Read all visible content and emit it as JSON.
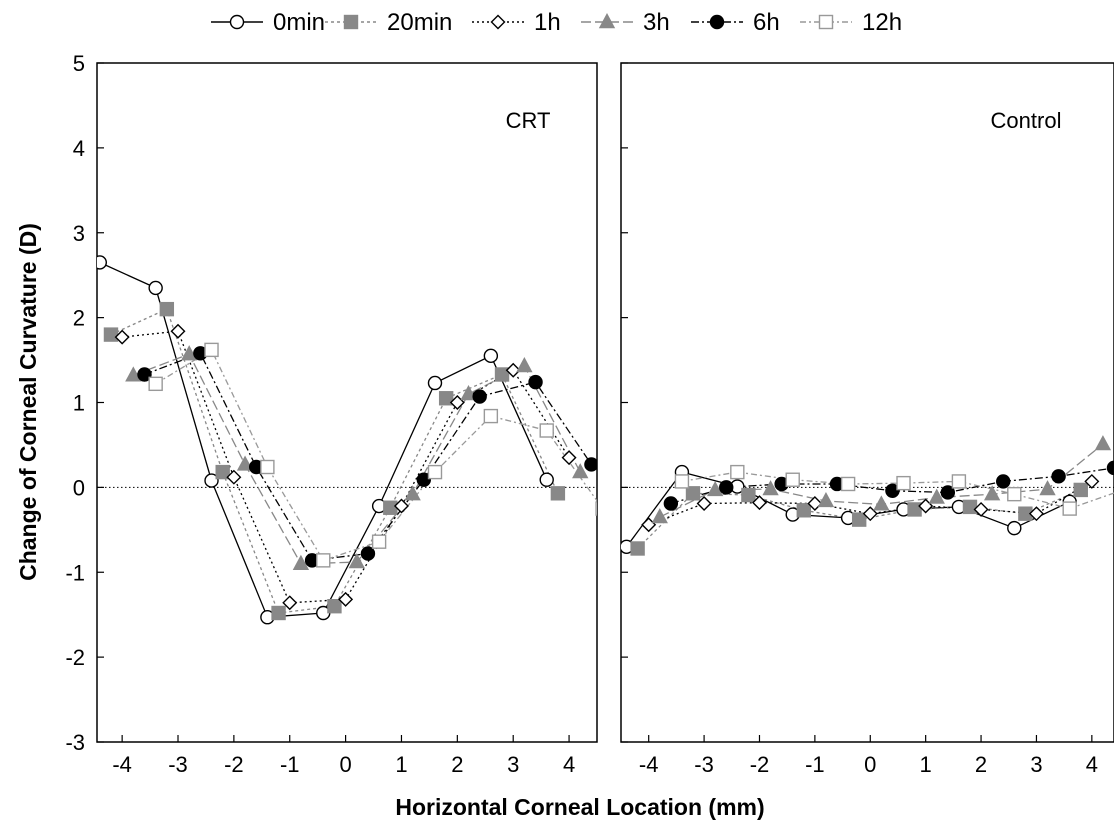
{
  "chart_data": {
    "type": "line",
    "xlabel": "Horizontal Corneal Location (mm)",
    "ylabel": "Change of Corneal Curvature (D)",
    "ylim": [
      -3,
      5
    ],
    "y_ticks": [
      "5",
      "4",
      "3",
      "2",
      "1",
      "0",
      "-1",
      "-2",
      "-3"
    ],
    "x_ticks": [
      "-4",
      "-3",
      "-2",
      "-1",
      "0",
      "1",
      "2",
      "3",
      "4"
    ],
    "legend_position": "top",
    "reference_line": 0,
    "series_styles": [
      {
        "name": "0min",
        "color": "#000000",
        "fill": "#ffffff",
        "marker": "circle",
        "dash": ""
      },
      {
        "name": "20min",
        "color": "#888888",
        "fill": "#888888",
        "marker": "square",
        "dash": "3,3"
      },
      {
        "name": "1h",
        "color": "#000000",
        "fill": "#ffffff",
        "marker": "diamond",
        "dash": "2,3"
      },
      {
        "name": "3h",
        "color": "#888888",
        "fill": "#888888",
        "marker": "triangle",
        "dash": "10,4"
      },
      {
        "name": "6h",
        "color": "#000000",
        "fill": "#000000",
        "marker": "circle",
        "dash": "8,3,2,3"
      },
      {
        "name": "12h",
        "color": "#999999",
        "fill": "#ffffff",
        "marker": "square",
        "dash": "6,3,2,3"
      }
    ],
    "panels": [
      {
        "label": "CRT",
        "xlim": [
          -4.45,
          4.5
        ],
        "series": [
          {
            "name": "0min",
            "x": [
              -4.4,
              -3.4,
              -2.4,
              -1.4,
              -0.4,
              0.6,
              1.6,
              2.6,
              3.6
            ],
            "y": [
              2.65,
              2.35,
              0.08,
              -1.53,
              -1.48,
              -0.22,
              1.23,
              1.55,
              0.09
            ]
          },
          {
            "name": "20min",
            "x": [
              -4.2,
              -3.2,
              -2.2,
              -1.2,
              -0.2,
              0.8,
              1.8,
              2.8,
              3.8
            ],
            "y": [
              1.8,
              2.1,
              0.18,
              -1.48,
              -1.4,
              -0.24,
              1.05,
              1.33,
              -0.07
            ]
          },
          {
            "name": "1h",
            "x": [
              -4.0,
              -3.0,
              -2.0,
              -1.0,
              0.0,
              1.0,
              2.0,
              3.0,
              4.0
            ],
            "y": [
              1.77,
              1.84,
              0.12,
              -1.36,
              -1.32,
              -0.22,
              1.0,
              1.38,
              0.35
            ]
          },
          {
            "name": "3h",
            "x": [
              -3.8,
              -2.8,
              -1.8,
              -0.8,
              0.2,
              1.2,
              2.2,
              3.2,
              4.2
            ],
            "y": [
              1.32,
              1.57,
              0.27,
              -0.9,
              -0.88,
              -0.08,
              1.1,
              1.43,
              0.18
            ]
          },
          {
            "name": "6h",
            "x": [
              -3.6,
              -2.6,
              -1.6,
              -0.6,
              0.4,
              1.4,
              2.4,
              3.4,
              4.4
            ],
            "y": [
              1.33,
              1.58,
              0.24,
              -0.86,
              -0.78,
              0.09,
              1.07,
              1.24,
              0.27
            ]
          },
          {
            "name": "12h",
            "x": [
              -3.4,
              -2.4,
              -1.4,
              -0.4,
              0.6,
              1.6,
              2.6,
              3.6,
              4.6
            ],
            "y": [
              1.22,
              1.62,
              0.24,
              -0.86,
              -0.64,
              0.18,
              0.84,
              0.67,
              -0.25
            ]
          }
        ]
      },
      {
        "label": "Control",
        "xlim": [
          -4.5,
          4.4
        ],
        "series": [
          {
            "name": "0min",
            "x": [
              -4.4,
              -3.4,
              -2.4,
              -1.4,
              -0.4,
              0.6,
              1.6,
              2.6,
              3.6
            ],
            "y": [
              -0.7,
              0.18,
              0.01,
              -0.32,
              -0.36,
              -0.26,
              -0.23,
              -0.48,
              -0.17
            ]
          },
          {
            "name": "20min",
            "x": [
              -4.2,
              -3.2,
              -2.2,
              -1.2,
              -0.2,
              0.8,
              1.8,
              2.8,
              3.8
            ],
            "y": [
              -0.72,
              -0.07,
              -0.09,
              -0.27,
              -0.38,
              -0.26,
              -0.23,
              -0.31,
              -0.03
            ]
          },
          {
            "name": "1h",
            "x": [
              -4.0,
              -3.0,
              -2.0,
              -1.0,
              0.0,
              1.0,
              2.0,
              3.0,
              4.0
            ],
            "y": [
              -0.44,
              -0.19,
              -0.18,
              -0.19,
              -0.31,
              -0.22,
              -0.26,
              -0.31,
              0.07
            ]
          },
          {
            "name": "3h",
            "x": [
              -3.8,
              -2.8,
              -1.8,
              -0.8,
              0.2,
              1.2,
              2.2,
              3.2,
              4.2
            ],
            "y": [
              -0.35,
              -0.03,
              -0.02,
              -0.16,
              -0.2,
              -0.12,
              -0.08,
              -0.02,
              0.51
            ]
          },
          {
            "name": "6h",
            "x": [
              -3.6,
              -2.6,
              -1.6,
              -0.6,
              0.4,
              1.4,
              2.4,
              3.4,
              4.4
            ],
            "y": [
              -0.19,
              0.0,
              0.04,
              0.04,
              -0.04,
              -0.06,
              0.07,
              0.13,
              0.23
            ]
          },
          {
            "name": "12h",
            "x": [
              -3.4,
              -2.4,
              -1.4,
              -0.4,
              0.6,
              1.6,
              2.6,
              3.6,
              4.6
            ],
            "y": [
              0.07,
              0.18,
              0.09,
              0.04,
              0.05,
              0.07,
              -0.08,
              -0.25,
              -0.02
            ]
          }
        ]
      }
    ]
  }
}
